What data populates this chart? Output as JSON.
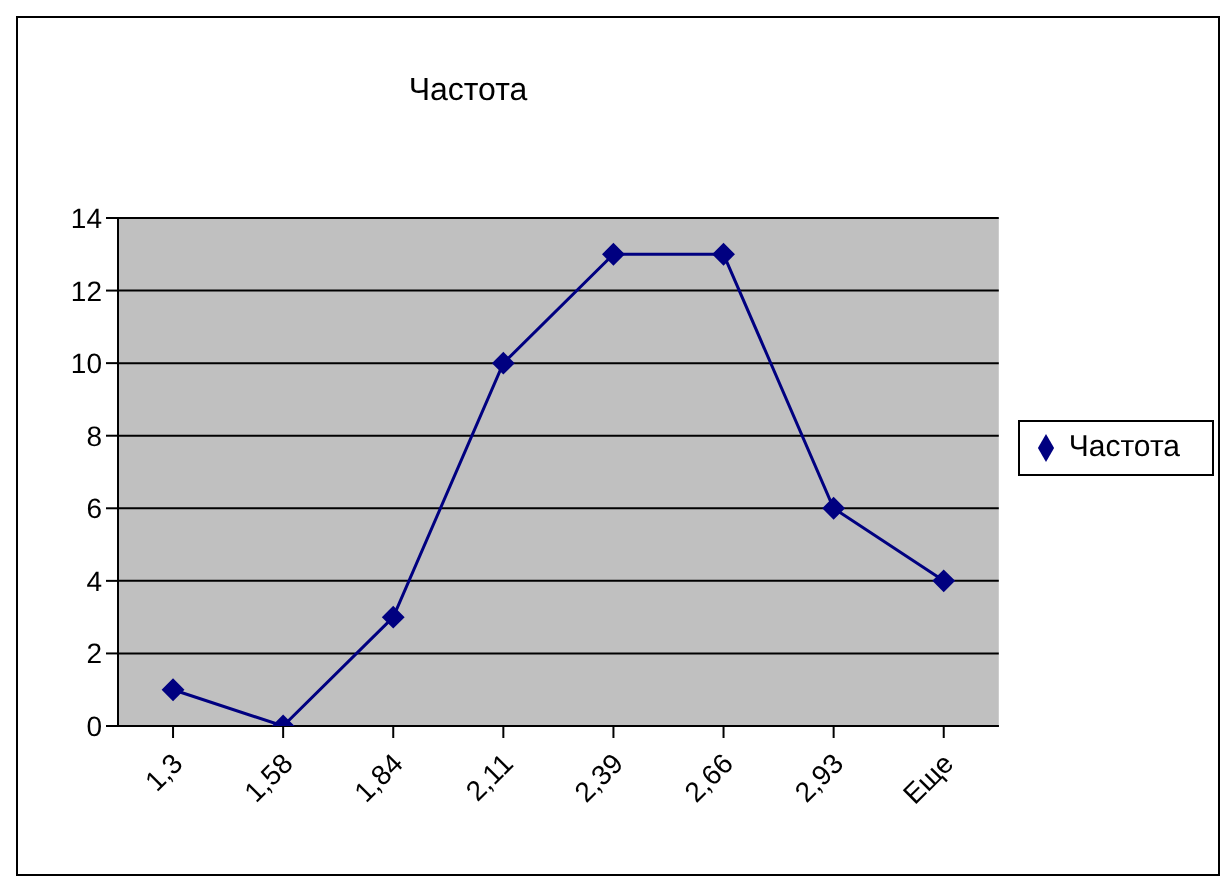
{
  "chart_data": {
    "type": "line",
    "title": "Частота",
    "categories": [
      "1,3",
      "1,58",
      "1,84",
      "2,11",
      "2,39",
      "2,66",
      "2,93",
      "Еще"
    ],
    "series": [
      {
        "name": "Частота",
        "color": "#000080",
        "values": [
          1,
          0,
          3,
          10,
          13,
          13,
          6,
          4
        ]
      }
    ],
    "ylim": [
      0,
      14
    ],
    "yticks": [
      0,
      2,
      4,
      6,
      8,
      10,
      12,
      14
    ],
    "grid": "y",
    "legend": "right",
    "marker": "diamond"
  }
}
